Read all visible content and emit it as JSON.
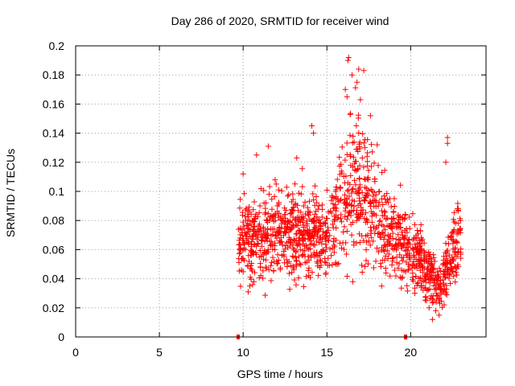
{
  "chart_data": {
    "type": "scatter",
    "title": "Day 286 of 2020, SRMTID for receiver wind",
    "xlabel": "GPS time / hours",
    "ylabel": "SRMTID / TECUs",
    "xlim": [
      0,
      24.5
    ],
    "ylim": [
      0,
      0.2
    ],
    "x_ticks": [
      0,
      5,
      10,
      15,
      20
    ],
    "x_tick_labels": [
      "0",
      "5",
      "10",
      "15",
      "20"
    ],
    "y_ticks": [
      0,
      0.02,
      0.04,
      0.06,
      0.08,
      0.1,
      0.12,
      0.14,
      0.16,
      0.18,
      0.2
    ],
    "y_tick_labels": [
      "0",
      "0.02",
      "0.04",
      "0.06",
      "0.08",
      "0.1",
      "0.12",
      "0.14",
      "0.16",
      "0.18",
      "0.2"
    ],
    "grid": true,
    "marker": "+",
    "series": [
      {
        "name": "SRMTID",
        "color": "#ff0000",
        "profile": [
          {
            "t": 9.7,
            "mean": 0.065,
            "spread": 0.028
          },
          {
            "t": 11.0,
            "mean": 0.068,
            "spread": 0.032
          },
          {
            "t": 12.5,
            "mean": 0.072,
            "spread": 0.033
          },
          {
            "t": 14.0,
            "mean": 0.072,
            "spread": 0.033
          },
          {
            "t": 15.0,
            "mean": 0.068,
            "spread": 0.03
          },
          {
            "t": 16.0,
            "mean": 0.09,
            "spread": 0.045
          },
          {
            "t": 16.7,
            "mean": 0.105,
            "spread": 0.06
          },
          {
            "t": 17.5,
            "mean": 0.09,
            "spread": 0.045
          },
          {
            "t": 18.5,
            "mean": 0.075,
            "spread": 0.035
          },
          {
            "t": 19.5,
            "mean": 0.065,
            "spread": 0.03
          },
          {
            "t": 20.5,
            "mean": 0.055,
            "spread": 0.025
          },
          {
            "t": 21.3,
            "mean": 0.04,
            "spread": 0.02
          },
          {
            "t": 21.8,
            "mean": 0.035,
            "spread": 0.018
          },
          {
            "t": 22.5,
            "mean": 0.06,
            "spread": 0.03
          },
          {
            "t": 23.0,
            "mean": 0.07,
            "spread": 0.03
          }
        ],
        "count": 1400,
        "extremes": [
          {
            "x": 16.3,
            "y": 0.192
          },
          {
            "x": 16.25,
            "y": 0.19
          },
          {
            "x": 16.9,
            "y": 0.184
          },
          {
            "x": 17.2,
            "y": 0.183
          },
          {
            "x": 16.5,
            "y": 0.18
          },
          {
            "x": 16.8,
            "y": 0.175
          },
          {
            "x": 16.1,
            "y": 0.17
          },
          {
            "x": 16.2,
            "y": 0.165
          },
          {
            "x": 17.0,
            "y": 0.163
          },
          {
            "x": 17.6,
            "y": 0.152
          },
          {
            "x": 14.1,
            "y": 0.145
          },
          {
            "x": 14.2,
            "y": 0.14
          },
          {
            "x": 22.2,
            "y": 0.137
          },
          {
            "x": 22.2,
            "y": 0.133
          },
          {
            "x": 18.0,
            "y": 0.132
          },
          {
            "x": 11.5,
            "y": 0.131
          },
          {
            "x": 10.8,
            "y": 0.125
          },
          {
            "x": 13.2,
            "y": 0.123
          },
          {
            "x": 22.1,
            "y": 0.12
          },
          {
            "x": 10.0,
            "y": 0.112
          },
          {
            "x": 21.3,
            "y": 0.012
          },
          {
            "x": 21.7,
            "y": 0.015
          },
          {
            "x": 21.5,
            "y": 0.018
          },
          {
            "x": 21.1,
            "y": 0.02
          },
          {
            "x": 22.0,
            "y": 0.022
          },
          {
            "x": 10.3,
            "y": 0.031
          },
          {
            "x": 10.4,
            "y": 0.035
          }
        ]
      }
    ],
    "markers_on_axis": [
      {
        "x": 9.7,
        "y": 0,
        "color": "#ff0000"
      },
      {
        "x": 19.7,
        "y": 0,
        "color": "#ff0000"
      }
    ]
  }
}
